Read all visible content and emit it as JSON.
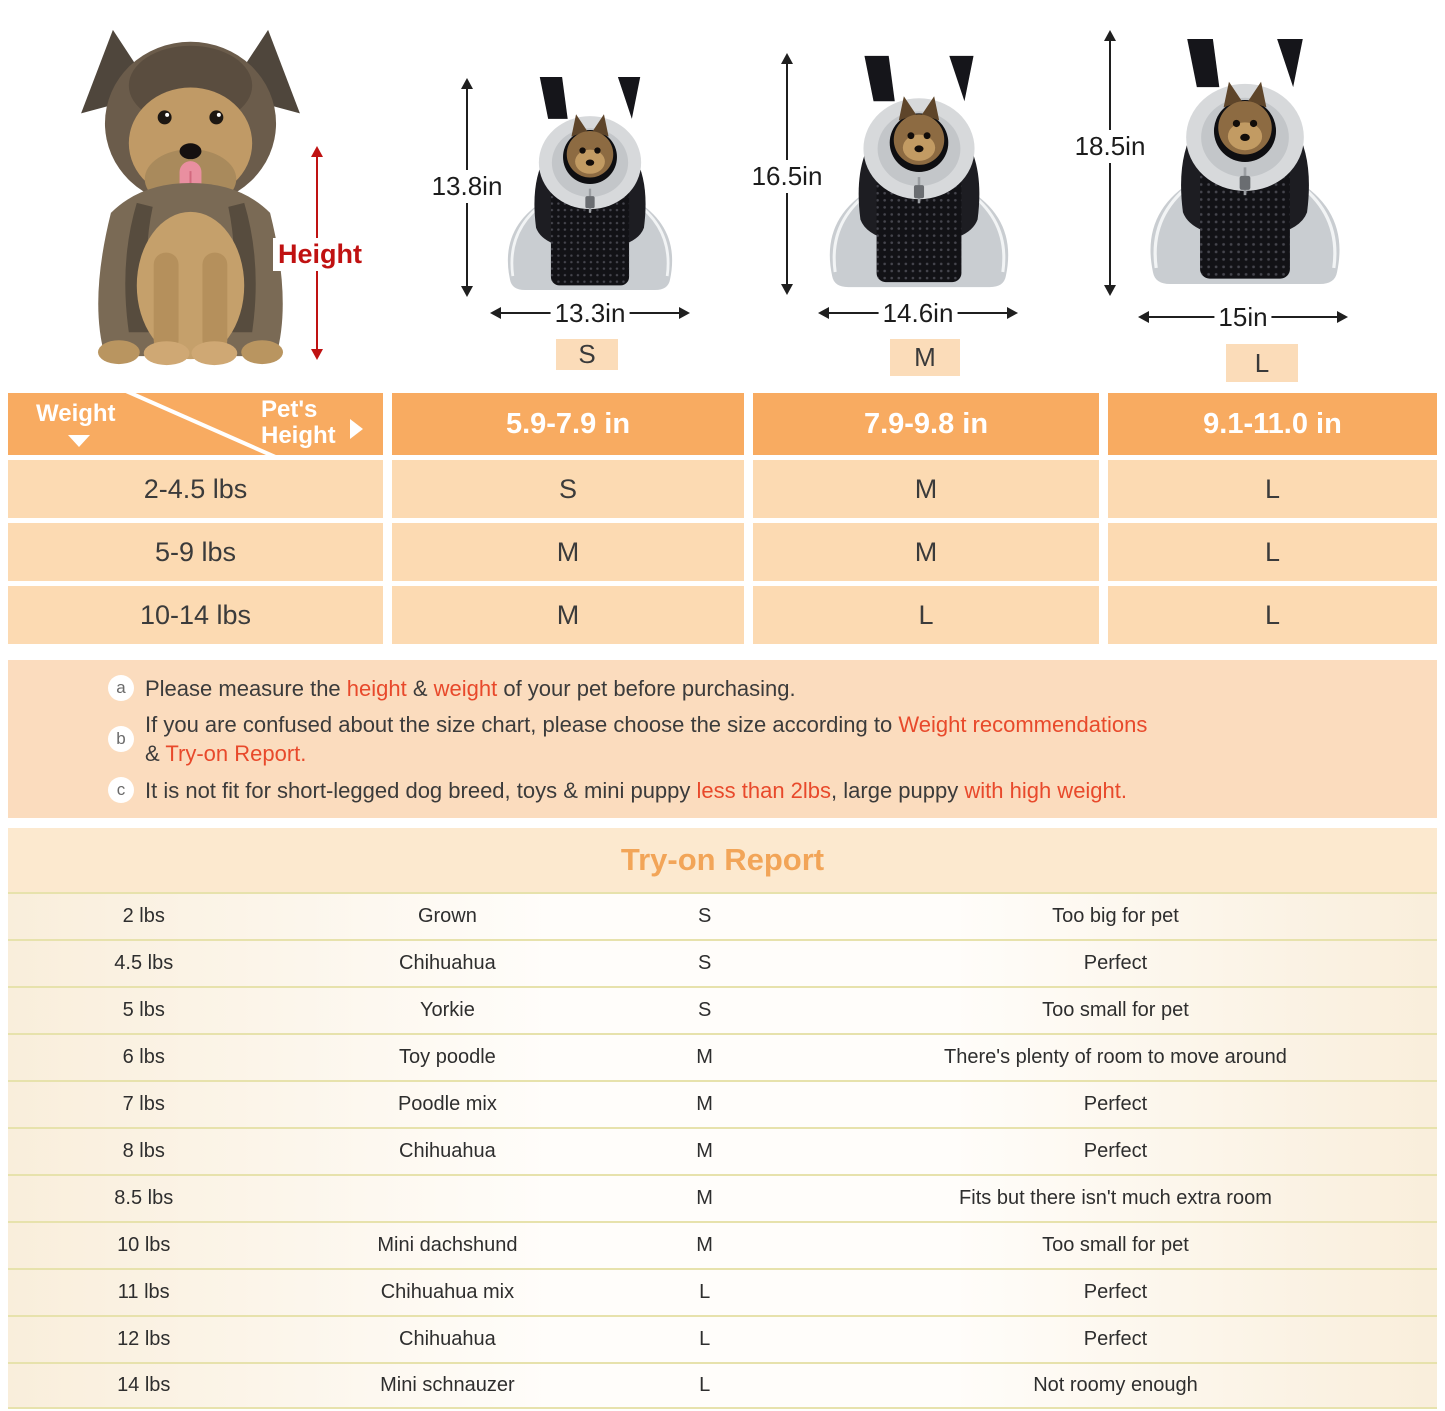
{
  "hero": {
    "height_label": "Height",
    "sizes": [
      {
        "code": "S",
        "height": "13.8in",
        "width": "13.3in"
      },
      {
        "code": "M",
        "height": "16.5in",
        "width": "14.6in"
      },
      {
        "code": "L",
        "height": "18.5in",
        "width": "15in"
      }
    ]
  },
  "size_chart": {
    "corner": {
      "row_label": "Weight",
      "col_label": "Pet's Height"
    },
    "columns": [
      "5.9-7.9 in",
      "7.9-9.8 in",
      "9.1-11.0 in"
    ],
    "rows": [
      {
        "weight": "2-4.5 lbs",
        "values": [
          "S",
          "M",
          "L"
        ]
      },
      {
        "weight": "5-9 lbs",
        "values": [
          "M",
          "M",
          "L"
        ]
      },
      {
        "weight": "10-14 lbs",
        "values": [
          "M",
          "L",
          "L"
        ]
      }
    ]
  },
  "notes": [
    {
      "badge": "a",
      "lines": [
        [
          {
            "t": "Please measure the "
          },
          {
            "t": "height",
            "hl": true
          },
          {
            "t": " & "
          },
          {
            "t": "weight",
            "hl": true
          },
          {
            "t": " of your pet before purchasing."
          }
        ]
      ]
    },
    {
      "badge": "b",
      "lines": [
        [
          {
            "t": "If you are confused about the size chart, please choose the size according to "
          },
          {
            "t": "Weight recommendations",
            "hl": true
          }
        ],
        [
          {
            "t": "& "
          },
          {
            "t": "Try-on Report.",
            "hl": true
          }
        ]
      ]
    },
    {
      "badge": "c",
      "lines": [
        [
          {
            "t": "It is not fit for short-legged dog breed, toys & mini puppy "
          },
          {
            "t": "less than 2lbs",
            "hl": true
          },
          {
            "t": ", large puppy "
          },
          {
            "t": "with high weight.",
            "hl": true
          }
        ]
      ]
    }
  ],
  "tryon": {
    "title": "Try-on Report",
    "rows": [
      {
        "weight": "2 lbs",
        "breed": "Grown",
        "size": "S",
        "comment": "Too big for pet"
      },
      {
        "weight": "4.5 lbs",
        "breed": "Chihuahua",
        "size": "S",
        "comment": "Perfect"
      },
      {
        "weight": "5 lbs",
        "breed": "Yorkie",
        "size": "S",
        "comment": "Too small for pet"
      },
      {
        "weight": "6 lbs",
        "breed": "Toy poodle",
        "size": "M",
        "comment": "There's plenty of room to move around"
      },
      {
        "weight": "7 lbs",
        "breed": "Poodle mix",
        "size": "M",
        "comment": "Perfect"
      },
      {
        "weight": "8 lbs",
        "breed": "Chihuahua",
        "size": "M",
        "comment": "Perfect"
      },
      {
        "weight": "8.5 lbs",
        "breed": "",
        "size": "M",
        "comment": "Fits but there isn't much extra room"
      },
      {
        "weight": "10 lbs",
        "breed": "Mini dachshund",
        "size": "M",
        "comment": "Too small for pet"
      },
      {
        "weight": "11 lbs",
        "breed": "Chihuahua mix",
        "size": "L",
        "comment": "Perfect"
      },
      {
        "weight": "12 lbs",
        "breed": "Chihuahua",
        "size": "L",
        "comment": "Perfect"
      },
      {
        "weight": "14 lbs",
        "breed": "Mini schnauzer",
        "size": "L",
        "comment": "Not roomy enough"
      }
    ]
  },
  "colors": {
    "header_orange": "#f8ab61",
    "row_peach": "#fcdab2",
    "notes_peach": "#fbdcbe",
    "badge_peach": "#fbdcb9",
    "tryon_band": "#fce9cf",
    "tryon_title_orange": "#f2a558",
    "separator_khaki": "#e7e2ac",
    "highlight_red": "#e8492b",
    "height_arrow_red": "#bf1212"
  }
}
